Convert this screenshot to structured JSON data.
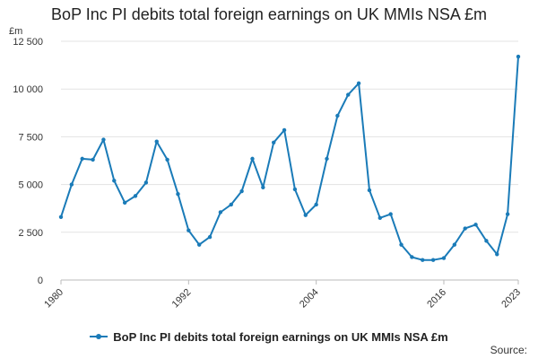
{
  "chart_data": {
    "type": "line",
    "title": "BoP Inc PI debits total foreign earnings on UK MMIs NSA £m",
    "unit_label": "£m",
    "xlabel": "",
    "ylabel": "",
    "ylim": [
      0,
      12500
    ],
    "yticks": [
      0,
      2500,
      5000,
      7500,
      10000,
      12500
    ],
    "ytick_labels": [
      "0",
      "2 500",
      "5 000",
      "7 500",
      "10 000",
      "12 500"
    ],
    "xlim": [
      1980,
      2023
    ],
    "xticks": [
      1980,
      1992,
      2004,
      2016,
      2023
    ],
    "xtick_labels": [
      "1980",
      "1992",
      "2004",
      "2016",
      "2023"
    ],
    "grid": "horizontal",
    "legend_position": "bottom",
    "series": [
      {
        "name": "BoP Inc PI debits total foreign earnings on UK MMIs NSA £m",
        "color": "#1a7bb8",
        "x": [
          1980,
          1981,
          1982,
          1983,
          1984,
          1985,
          1986,
          1987,
          1988,
          1989,
          1990,
          1991,
          1992,
          1993,
          1994,
          1995,
          1996,
          1997,
          1998,
          1999,
          2000,
          2001,
          2002,
          2003,
          2004,
          2005,
          2006,
          2007,
          2008,
          2009,
          2010,
          2011,
          2012,
          2013,
          2014,
          2015,
          2016,
          2017,
          2018,
          2019,
          2020,
          2021,
          2022,
          2023
        ],
        "values": [
          3300,
          5000,
          6350,
          6300,
          7350,
          5200,
          4050,
          4400,
          5100,
          7250,
          6300,
          4500,
          2600,
          1850,
          2250,
          3550,
          3950,
          4650,
          6350,
          4850,
          7200,
          7850,
          4750,
          3400,
          3950,
          6350,
          8600,
          9700,
          10300,
          4700,
          3250,
          3450,
          1850,
          1200,
          1050,
          1050,
          1150,
          1850,
          2700,
          2900,
          2050,
          1350,
          3450,
          11700
        ]
      }
    ],
    "legend": {
      "entries": [
        "BoP Inc PI debits total foreign earnings on UK MMIs NSA £m"
      ]
    },
    "source_label": "Source:"
  }
}
